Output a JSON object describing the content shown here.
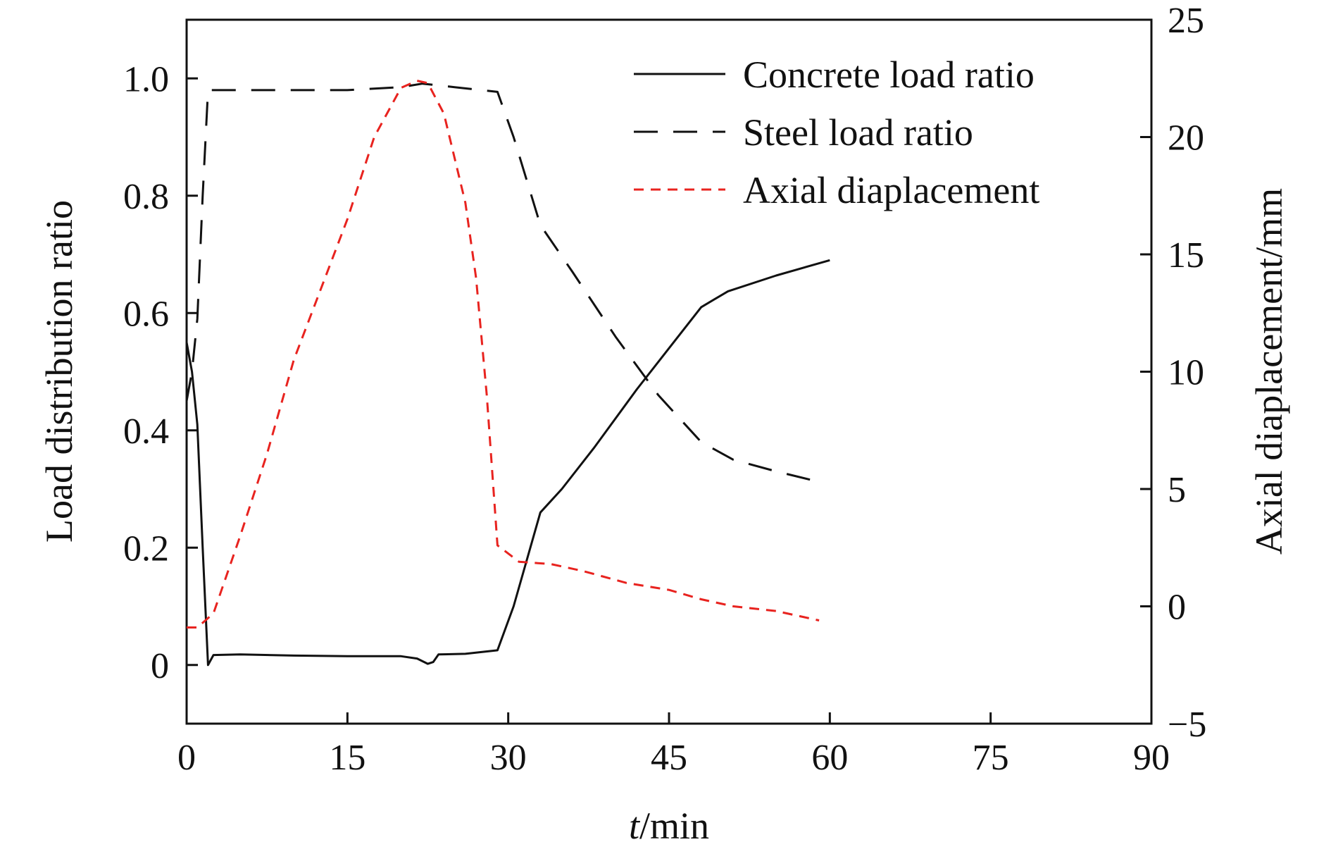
{
  "chart_data": {
    "type": "line",
    "x_axis": {
      "label_italic": "t",
      "label_rest": "/min",
      "range": [
        0,
        90
      ],
      "ticks": [
        0,
        15,
        30,
        45,
        60,
        75,
        90
      ]
    },
    "y_left": {
      "label": "Load distribution ratio",
      "range": [
        -0.1,
        1.1
      ],
      "ticks": [
        0,
        0.2,
        0.4,
        0.6,
        0.8,
        1.0
      ],
      "tick_labels": [
        "0",
        "0.2",
        "0.4",
        "0.6",
        "0.8",
        "1.0"
      ]
    },
    "y_right": {
      "label": "Axial diaplacement/mm",
      "range": [
        -5,
        25
      ],
      "ticks": [
        -5,
        0,
        5,
        10,
        15,
        20,
        25
      ],
      "tick_labels": [
        "−5",
        "0",
        "5",
        "10",
        "15",
        "20",
        "25"
      ]
    },
    "legend_position": "top-right",
    "series": [
      {
        "name": "Concrete load ratio",
        "axis": "left",
        "color": "#111111",
        "style": "solid",
        "points": [
          [
            0,
            0.55
          ],
          [
            0.5,
            0.5
          ],
          [
            1,
            0.41
          ],
          [
            1.5,
            0.2
          ],
          [
            2,
            0.0
          ],
          [
            2.5,
            0.017
          ],
          [
            5,
            0.018
          ],
          [
            10,
            0.016
          ],
          [
            15,
            0.015
          ],
          [
            20,
            0.015
          ],
          [
            21.5,
            0.011
          ],
          [
            22.5,
            0.002
          ],
          [
            23,
            0.005
          ],
          [
            23.5,
            0.018
          ],
          [
            26,
            0.019
          ],
          [
            29,
            0.025
          ],
          [
            30.5,
            0.1
          ],
          [
            33,
            0.26
          ],
          [
            35,
            0.3
          ],
          [
            38,
            0.37
          ],
          [
            42,
            0.47
          ],
          [
            45,
            0.54
          ],
          [
            48,
            0.61
          ],
          [
            50.5,
            0.637
          ],
          [
            55,
            0.664
          ],
          [
            60,
            0.69
          ]
        ]
      },
      {
        "name": "Steel load ratio",
        "axis": "left",
        "color": "#111111",
        "style": "dashed",
        "points": [
          [
            0,
            0.45
          ],
          [
            0.5,
            0.5
          ],
          [
            1,
            0.59
          ],
          [
            1.5,
            0.8
          ],
          [
            2,
            0.98
          ],
          [
            5,
            0.98
          ],
          [
            15,
            0.98
          ],
          [
            20,
            0.985
          ],
          [
            22,
            0.991
          ],
          [
            25,
            0.985
          ],
          [
            29,
            0.977
          ],
          [
            30.5,
            0.9
          ],
          [
            33,
            0.75
          ],
          [
            36,
            0.67
          ],
          [
            40,
            0.56
          ],
          [
            44,
            0.46
          ],
          [
            48,
            0.38
          ],
          [
            51,
            0.35
          ],
          [
            55,
            0.33
          ],
          [
            59.5,
            0.31
          ]
        ]
      },
      {
        "name": "Axial diaplacement",
        "axis": "right",
        "color": "#e8231f",
        "style": "dotted-dash",
        "points": [
          [
            0,
            -0.9
          ],
          [
            1,
            -0.9
          ],
          [
            2.5,
            -0.3
          ],
          [
            5,
            3
          ],
          [
            7.5,
            6.5
          ],
          [
            10,
            10.5
          ],
          [
            12.5,
            13.5
          ],
          [
            15,
            16.5
          ],
          [
            17.5,
            20
          ],
          [
            20,
            22.1
          ],
          [
            21.5,
            22.4
          ],
          [
            22.5,
            22.3
          ],
          [
            24,
            21
          ],
          [
            26,
            17.2
          ],
          [
            27,
            14
          ],
          [
            28,
            9
          ],
          [
            29,
            2.6
          ],
          [
            31,
            1.9
          ],
          [
            34,
            1.8
          ],
          [
            37,
            1.5
          ],
          [
            41,
            1.0
          ],
          [
            45,
            0.7
          ],
          [
            48,
            0.3
          ],
          [
            51,
            0
          ],
          [
            55,
            -0.2
          ],
          [
            59,
            -0.6
          ]
        ]
      }
    ]
  }
}
